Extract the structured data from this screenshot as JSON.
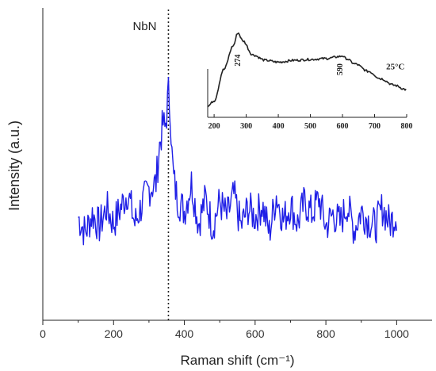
{
  "chart_data": [
    {
      "type": "line",
      "xlabel": "Raman shift (cm⁻¹)",
      "ylabel": "Intensity (a.u.)",
      "xlim": [
        0,
        1100
      ],
      "ylim": [
        0,
        1
      ],
      "x_ticks": [
        0,
        200,
        400,
        600,
        800,
        1000
      ],
      "y_ticks_labeled": false,
      "grid": false,
      "series_color": "#1f1fe6",
      "x": [
        100,
        120,
        140,
        160,
        180,
        200,
        220,
        240,
        260,
        280,
        300,
        320,
        330,
        340,
        345,
        350,
        355,
        360,
        365,
        370,
        380,
        400,
        420,
        440,
        460,
        480,
        500,
        520,
        540,
        560,
        580,
        600,
        620,
        640,
        660,
        680,
        700,
        720,
        740,
        760,
        780,
        800,
        820,
        840,
        860,
        880,
        900,
        920,
        940,
        960,
        980,
        1000
      ],
      "values": [
        0.33,
        0.28,
        0.34,
        0.3,
        0.36,
        0.31,
        0.36,
        0.41,
        0.31,
        0.37,
        0.42,
        0.44,
        0.56,
        0.63,
        0.61,
        0.66,
        0.73,
        0.68,
        0.53,
        0.45,
        0.39,
        0.35,
        0.44,
        0.31,
        0.39,
        0.3,
        0.38,
        0.33,
        0.4,
        0.3,
        0.36,
        0.33,
        0.37,
        0.28,
        0.4,
        0.32,
        0.37,
        0.31,
        0.38,
        0.34,
        0.39,
        0.3,
        0.34,
        0.31,
        0.37,
        0.29,
        0.35,
        0.32,
        0.3,
        0.36,
        0.31,
        0.34
      ],
      "annotations": [
        {
          "text": "NbN",
          "x": 355
        }
      ]
    },
    {
      "type": "line",
      "inset": true,
      "xlim": [
        180,
        800
      ],
      "ylim": [
        0,
        1
      ],
      "x_ticks": [
        200,
        300,
        400,
        500,
        600,
        700,
        800
      ],
      "x": [
        180,
        200,
        230,
        260,
        274,
        290,
        320,
        360,
        400,
        450,
        500,
        550,
        590,
        600,
        610,
        640,
        680,
        720,
        760,
        800
      ],
      "values": [
        0.12,
        0.18,
        0.52,
        0.78,
        0.92,
        0.83,
        0.68,
        0.62,
        0.6,
        0.62,
        0.63,
        0.64,
        0.66,
        0.67,
        0.64,
        0.58,
        0.5,
        0.42,
        0.35,
        0.3
      ],
      "annotations": [
        {
          "text": "274",
          "x": 274
        },
        {
          "text": "590",
          "x": 590
        },
        {
          "text": "25°C",
          "x": 760
        }
      ]
    }
  ]
}
